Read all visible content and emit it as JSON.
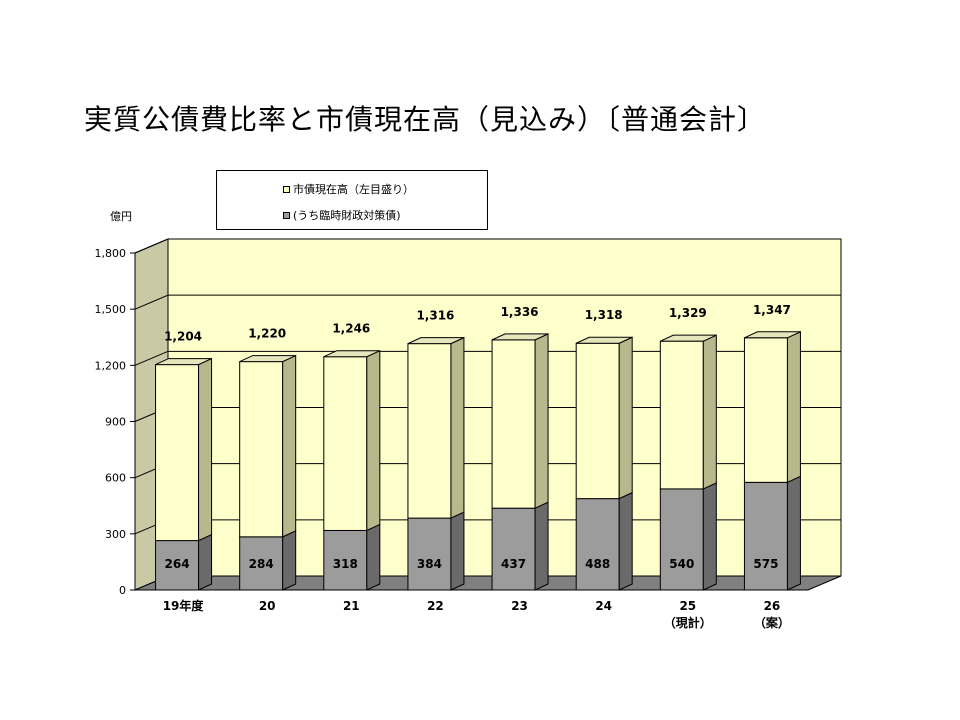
{
  "chart_data": {
    "type": "bar",
    "stacked": true,
    "three_d": true,
    "title": "実質公債費比率と市債現在高（見込み）〔普通会計〕",
    "ylabel": "億円",
    "ylim": [
      0,
      1800
    ],
    "yticks": [
      "0",
      "300",
      "600",
      "900",
      "1,200",
      "1,500",
      "1,800"
    ],
    "ytick_values": [
      0,
      300,
      600,
      900,
      1200,
      1500,
      1800
    ],
    "grid": true,
    "legend_position": "top",
    "categories": [
      [
        "19年度"
      ],
      [
        "20"
      ],
      [
        "21"
      ],
      [
        "22"
      ],
      [
        "23"
      ],
      [
        "24"
      ],
      [
        "25",
        "（現計）"
      ],
      [
        "26",
        "（案）"
      ]
    ],
    "series": [
      {
        "name": "(うち臨時財政対策債)",
        "color": "#9c9c9c",
        "values": [
          264,
          284,
          318,
          384,
          437,
          488,
          540,
          575
        ],
        "labels": [
          "264",
          "284",
          "318",
          "384",
          "437",
          "488",
          "540",
          "575"
        ]
      },
      {
        "name": "市債現在高（左目盛り）",
        "color": "#ffffcc",
        "total_values": [
          1204,
          1220,
          1246,
          1316,
          1336,
          1318,
          1329,
          1347
        ],
        "total_labels": [
          "1,204",
          "1,220",
          "1,246",
          "1,316",
          "1,336",
          "1,318",
          "1,329",
          "1,347"
        ]
      }
    ]
  }
}
